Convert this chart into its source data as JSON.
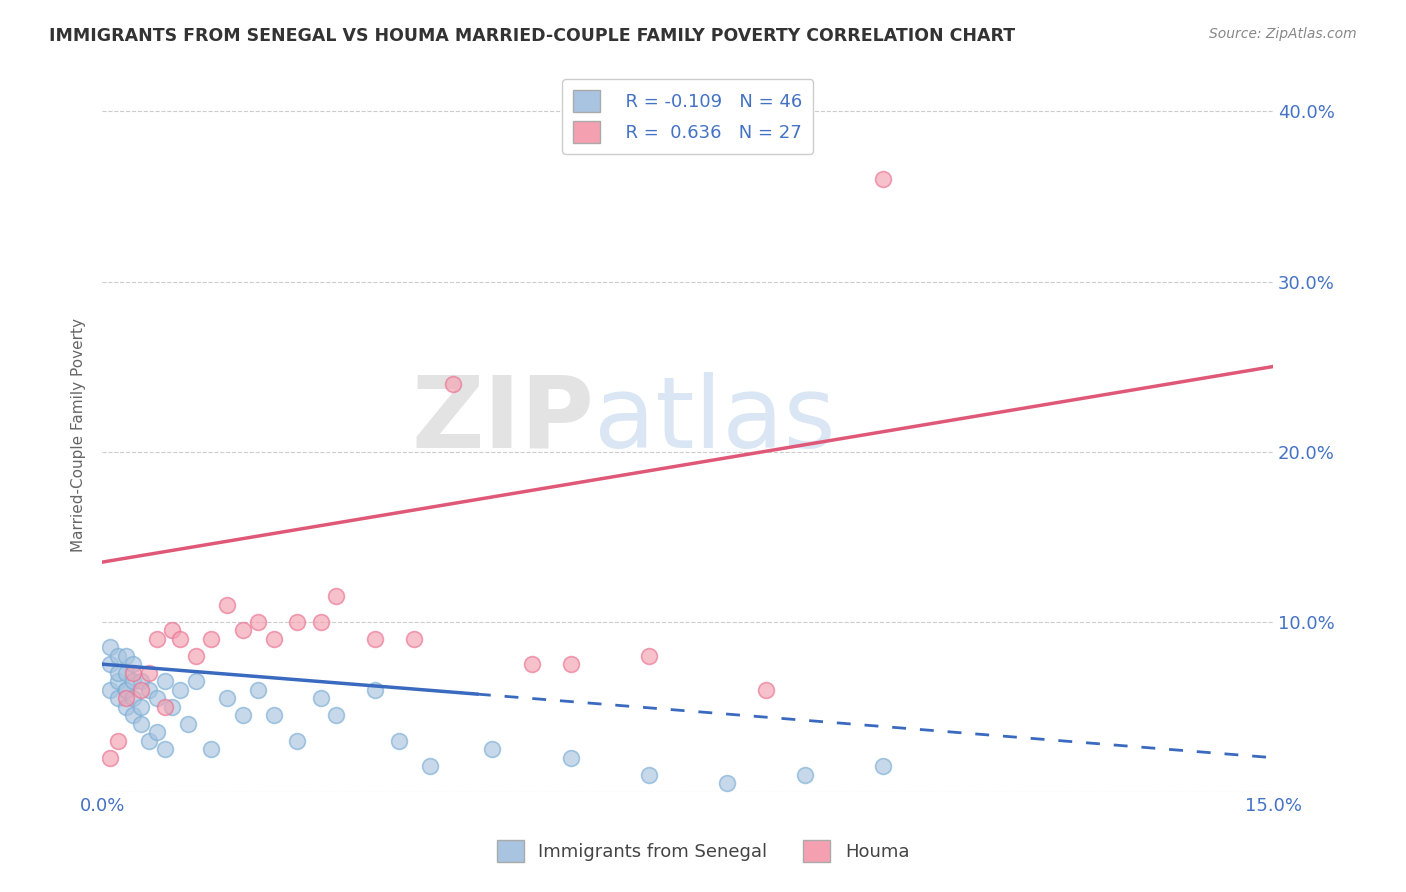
{
  "title": "IMMIGRANTS FROM SENEGAL VS HOUMA MARRIED-COUPLE FAMILY POVERTY CORRELATION CHART",
  "source": "Source: ZipAtlas.com",
  "ylabel_left": "Married-Couple Family Poverty",
  "series1_label": "Immigrants from Senegal",
  "series1_R": "-0.109",
  "series1_N": "46",
  "series1_color": "#a8c4e0",
  "series1_edge_color": "#7aadd4",
  "series1_line_color": "#3a6abf",
  "series2_label": "Houma",
  "series2_R": "0.636",
  "series2_N": "27",
  "series2_color": "#f4a0b0",
  "series2_edge_color": "#e87090",
  "series2_line_color": "#e05878",
  "xmin": 0.0,
  "xmax": 0.15,
  "ymin": 0.0,
  "ymax": 0.42,
  "yticks_right": [
    0.1,
    0.2,
    0.3,
    0.4
  ],
  "ytick_right_labels": [
    "10.0%",
    "20.0%",
    "30.0%",
    "40.0%"
  ],
  "watermark_zip": "ZIP",
  "watermark_atlas": "atlas",
  "background_color": "#ffffff",
  "grid_color": "#cccccc",
  "series1_x": [
    0.001,
    0.001,
    0.001,
    0.002,
    0.002,
    0.002,
    0.002,
    0.003,
    0.003,
    0.003,
    0.003,
    0.003,
    0.004,
    0.004,
    0.004,
    0.004,
    0.005,
    0.005,
    0.005,
    0.006,
    0.006,
    0.007,
    0.007,
    0.008,
    0.008,
    0.009,
    0.01,
    0.011,
    0.012,
    0.014,
    0.016,
    0.018,
    0.02,
    0.022,
    0.025,
    0.028,
    0.03,
    0.035,
    0.038,
    0.042,
    0.05,
    0.06,
    0.07,
    0.08,
    0.09,
    0.1
  ],
  "series1_y": [
    0.075,
    0.085,
    0.06,
    0.055,
    0.065,
    0.07,
    0.08,
    0.05,
    0.06,
    0.07,
    0.08,
    0.06,
    0.045,
    0.055,
    0.065,
    0.075,
    0.05,
    0.065,
    0.04,
    0.06,
    0.03,
    0.055,
    0.035,
    0.065,
    0.025,
    0.05,
    0.06,
    0.04,
    0.065,
    0.025,
    0.055,
    0.045,
    0.06,
    0.045,
    0.03,
    0.055,
    0.045,
    0.06,
    0.03,
    0.015,
    0.025,
    0.02,
    0.01,
    0.005,
    0.01,
    0.015
  ],
  "series2_x": [
    0.001,
    0.002,
    0.003,
    0.004,
    0.005,
    0.006,
    0.007,
    0.008,
    0.009,
    0.01,
    0.012,
    0.014,
    0.016,
    0.018,
    0.02,
    0.022,
    0.025,
    0.028,
    0.03,
    0.035,
    0.04,
    0.045,
    0.055,
    0.06,
    0.07,
    0.085,
    0.1
  ],
  "series2_y": [
    0.02,
    0.03,
    0.055,
    0.07,
    0.06,
    0.07,
    0.09,
    0.05,
    0.095,
    0.09,
    0.08,
    0.09,
    0.11,
    0.095,
    0.1,
    0.09,
    0.1,
    0.1,
    0.115,
    0.09,
    0.09,
    0.24,
    0.075,
    0.075,
    0.08,
    0.06,
    0.36
  ],
  "line1_x0": 0.0,
  "line1_y0": 0.075,
  "line1_x1": 0.15,
  "line1_y1": 0.02,
  "line1_solid_x1": 0.048,
  "line2_x0": 0.0,
  "line2_y0": 0.135,
  "line2_x1": 0.15,
  "line2_y1": 0.25
}
